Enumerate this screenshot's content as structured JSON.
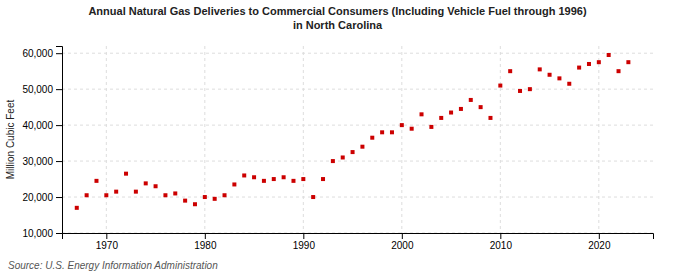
{
  "chart_data": {
    "type": "scatter",
    "title": "Annual Natural Gas Deliveries to Commercial Consumers (Including Vehicle Fuel through 1996)\nin North Carolina",
    "ylabel": "Million Cubic Feet",
    "source": "Source: U.S. Energy Information Administration",
    "color": "#cc0000",
    "marker": "square",
    "grid": true,
    "x": [
      1967,
      1968,
      1969,
      1970,
      1971,
      1972,
      1973,
      1974,
      1975,
      1976,
      1977,
      1978,
      1979,
      1980,
      1981,
      1982,
      1983,
      1984,
      1985,
      1986,
      1987,
      1988,
      1989,
      1990,
      1991,
      1992,
      1993,
      1994,
      1995,
      1996,
      1997,
      1998,
      1999,
      2000,
      2001,
      2002,
      2003,
      2004,
      2005,
      2006,
      2007,
      2008,
      2009,
      2010,
      2011,
      2012,
      2013,
      2014,
      2015,
      2016,
      2017,
      2018,
      2019,
      2020,
      2021,
      2022,
      2023
    ],
    "values": [
      17000,
      20500,
      24500,
      20500,
      21500,
      26500,
      21500,
      23800,
      23000,
      20500,
      21000,
      19000,
      18000,
      20000,
      19500,
      20500,
      23500,
      26000,
      25500,
      24500,
      25000,
      25500,
      24500,
      25000,
      20000,
      25000,
      30000,
      31000,
      32500,
      34000,
      36500,
      38000,
      38000,
      40000,
      39000,
      43000,
      39500,
      42000,
      43500,
      44500,
      47000,
      45000,
      42000,
      51000,
      55000,
      49500,
      50000,
      55500,
      54000,
      53000,
      51500,
      56000,
      57000,
      57500,
      59500,
      55000,
      57500
    ],
    "xlim": [
      1965.5,
      2025.5
    ],
    "xticks": [
      1970,
      1980,
      1990,
      2000,
      2010,
      2020
    ],
    "ylim": [
      10000,
      62000
    ],
    "yticks": [
      {
        "value": 10000,
        "label": "10,000"
      },
      {
        "value": 20000,
        "label": "20,000"
      },
      {
        "value": 30000,
        "label": "30,000"
      },
      {
        "value": 40000,
        "label": "40,000"
      },
      {
        "value": 50000,
        "label": "50,000"
      },
      {
        "value": 60000,
        "label": "60,000"
      }
    ]
  }
}
